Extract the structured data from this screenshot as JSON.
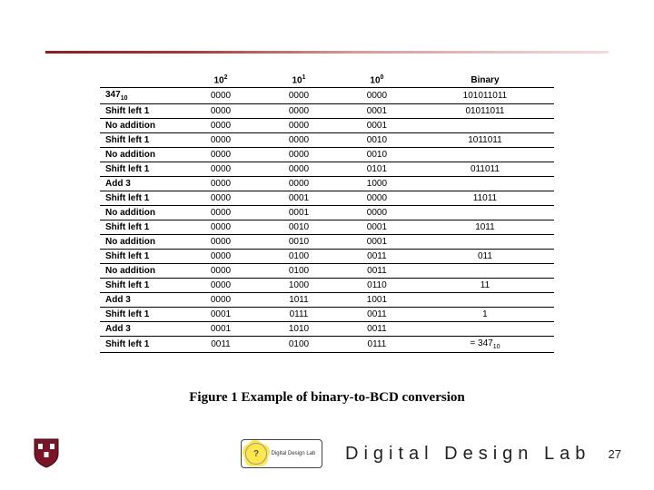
{
  "table": {
    "headers": [
      "",
      "10^2",
      "10^1",
      "10^0",
      "Binary"
    ],
    "rows": [
      [
        "347_10",
        "0000",
        "0000",
        "0000",
        "101011011"
      ],
      [
        "Shift left 1",
        "0000",
        "0000",
        "0001",
        "01011011"
      ],
      [
        "No addition",
        "0000",
        "0000",
        "0001",
        ""
      ],
      [
        "Shift left 1",
        "0000",
        "0000",
        "0010",
        "1011011"
      ],
      [
        "No addition",
        "0000",
        "0000",
        "0010",
        ""
      ],
      [
        "Shift left 1",
        "0000",
        "0000",
        "0101",
        "011011"
      ],
      [
        "Add 3",
        "0000",
        "0000",
        "1000",
        ""
      ],
      [
        "Shift left 1",
        "0000",
        "0001",
        "0000",
        "11011"
      ],
      [
        "No addition",
        "0000",
        "0001",
        "0000",
        ""
      ],
      [
        "Shift left 1",
        "0000",
        "0010",
        "0001",
        "1011"
      ],
      [
        "No addition",
        "0000",
        "0010",
        "0001",
        ""
      ],
      [
        "Shift left 1",
        "0000",
        "0100",
        "0011",
        "011"
      ],
      [
        "No addition",
        "0000",
        "0100",
        "0011",
        ""
      ],
      [
        "Shift left 1",
        "0000",
        "1000",
        "0110",
        "11"
      ],
      [
        "Add 3",
        "0000",
        "1011",
        "1001",
        ""
      ],
      [
        "Shift left 1",
        "0001",
        "0111",
        "0011",
        "1"
      ],
      [
        "Add 3",
        "0001",
        "1010",
        "0011",
        ""
      ],
      [
        "Shift left 1",
        "0011",
        "0100",
        "0111",
        "= 347_10"
      ]
    ]
  },
  "caption": "Figure 1 Example of binary-to-BCD conversion",
  "lab_title": "Digital Design Lab",
  "lab_logo_caption": "Digital Design Lab",
  "page_number": "27",
  "colors": {
    "divider_dark": "#8a1f1f",
    "divider_light": "#f2dcdc",
    "shield": "#7b1426"
  }
}
